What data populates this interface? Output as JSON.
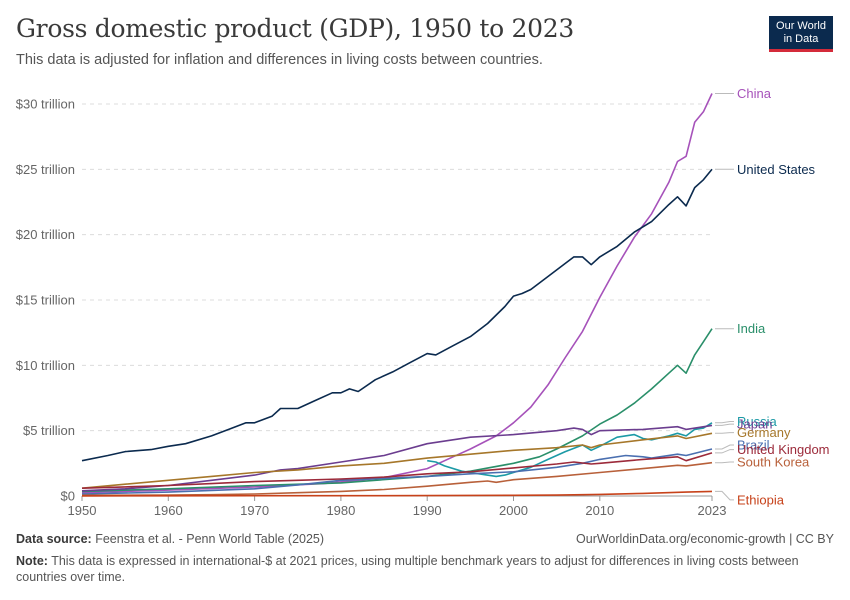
{
  "header": {
    "title": "Gross domestic product (GDP), 1950 to 2023",
    "subtitle": "This data is adjusted for inflation and differences in living costs between countries."
  },
  "logo": {
    "line1": "Our World",
    "line2": "in Data",
    "bg_color": "#0b2a4e",
    "accent_color": "#d42b3a"
  },
  "footer": {
    "source_label": "Data source:",
    "source_text": "Feenstra et al. - Penn World Table (2025)",
    "url_text": "OurWorldinData.org/economic-growth | CC BY",
    "note_label": "Note:",
    "note_text": "This data is expressed in international-$ at 2021 prices, using multiple benchmark years to adjust for differences in living costs between countries over time."
  },
  "chart_data": {
    "type": "line",
    "title": "Gross domestic product (GDP), 1950 to 2023",
    "xlim": [
      1950,
      2023
    ],
    "ylim": [
      0,
      31
    ],
    "grid": "horizontal dashed",
    "legend": "right, line-end labels",
    "x_ticks": [
      {
        "value": 1950,
        "label": "1950"
      },
      {
        "value": 1960,
        "label": "1960"
      },
      {
        "value": 1970,
        "label": "1970"
      },
      {
        "value": 1980,
        "label": "1980"
      },
      {
        "value": 1990,
        "label": "1990"
      },
      {
        "value": 2000,
        "label": "2000"
      },
      {
        "value": 2010,
        "label": "2010"
      },
      {
        "value": 2023,
        "label": "2023"
      }
    ],
    "y_ticks": [
      {
        "value": 0,
        "label": "$0"
      },
      {
        "value": 5,
        "label": "$5 trillion"
      },
      {
        "value": 10,
        "label": "$10 trillion"
      },
      {
        "value": 15,
        "label": "$15 trillion"
      },
      {
        "value": 20,
        "label": "$20 trillion"
      },
      {
        "value": 25,
        "label": "$25 trillion"
      },
      {
        "value": 30,
        "label": "$30 trillion"
      }
    ],
    "series": [
      {
        "name": "China",
        "color": "#a652ba",
        "label_value": 30.8,
        "points": [
          [
            1950,
            0.25
          ],
          [
            1960,
            0.45
          ],
          [
            1970,
            0.7
          ],
          [
            1978,
            0.95
          ],
          [
            1985,
            1.4
          ],
          [
            1990,
            2.1
          ],
          [
            1993,
            3.0
          ],
          [
            1995,
            3.6
          ],
          [
            1998,
            4.6
          ],
          [
            2000,
            5.6
          ],
          [
            2002,
            6.8
          ],
          [
            2004,
            8.5
          ],
          [
            2006,
            10.6
          ],
          [
            2008,
            12.6
          ],
          [
            2010,
            15.2
          ],
          [
            2012,
            17.6
          ],
          [
            2014,
            19.8
          ],
          [
            2016,
            21.6
          ],
          [
            2018,
            24.0
          ],
          [
            2019,
            25.6
          ],
          [
            2020,
            26.0
          ],
          [
            2021,
            28.6
          ],
          [
            2022,
            29.4
          ],
          [
            2023,
            30.8
          ]
        ]
      },
      {
        "name": "United States",
        "color": "#0b2a4e",
        "label_value": 25.0,
        "points": [
          [
            1950,
            2.7
          ],
          [
            1953,
            3.1
          ],
          [
            1955,
            3.4
          ],
          [
            1958,
            3.55
          ],
          [
            1960,
            3.8
          ],
          [
            1962,
            4.0
          ],
          [
            1965,
            4.6
          ],
          [
            1967,
            5.1
          ],
          [
            1969,
            5.6
          ],
          [
            1970,
            5.6
          ],
          [
            1972,
            6.1
          ],
          [
            1973,
            6.7
          ],
          [
            1975,
            6.7
          ],
          [
            1977,
            7.3
          ],
          [
            1979,
            7.9
          ],
          [
            1980,
            7.9
          ],
          [
            1981,
            8.2
          ],
          [
            1982,
            8.0
          ],
          [
            1984,
            8.9
          ],
          [
            1986,
            9.5
          ],
          [
            1988,
            10.2
          ],
          [
            1990,
            10.9
          ],
          [
            1991,
            10.8
          ],
          [
            1993,
            11.5
          ],
          [
            1995,
            12.2
          ],
          [
            1997,
            13.2
          ],
          [
            1999,
            14.5
          ],
          [
            2000,
            15.3
          ],
          [
            2001,
            15.5
          ],
          [
            2002,
            15.8
          ],
          [
            2004,
            16.8
          ],
          [
            2006,
            17.8
          ],
          [
            2007,
            18.3
          ],
          [
            2008,
            18.3
          ],
          [
            2009,
            17.7
          ],
          [
            2010,
            18.3
          ],
          [
            2012,
            19.1
          ],
          [
            2014,
            20.2
          ],
          [
            2016,
            21.0
          ],
          [
            2018,
            22.3
          ],
          [
            2019,
            22.9
          ],
          [
            2020,
            22.2
          ],
          [
            2021,
            23.6
          ],
          [
            2022,
            24.2
          ],
          [
            2023,
            25.0
          ]
        ]
      },
      {
        "name": "India",
        "color": "#2a8f6a",
        "label_value": 12.8,
        "points": [
          [
            1950,
            0.35
          ],
          [
            1960,
            0.55
          ],
          [
            1970,
            0.8
          ],
          [
            1980,
            1.0
          ],
          [
            1990,
            1.5
          ],
          [
            1995,
            1.9
          ],
          [
            2000,
            2.5
          ],
          [
            2003,
            3.0
          ],
          [
            2005,
            3.6
          ],
          [
            2008,
            4.6
          ],
          [
            2010,
            5.5
          ],
          [
            2012,
            6.2
          ],
          [
            2014,
            7.1
          ],
          [
            2016,
            8.2
          ],
          [
            2018,
            9.4
          ],
          [
            2019,
            10.0
          ],
          [
            2020,
            9.4
          ],
          [
            2021,
            10.8
          ],
          [
            2022,
            11.8
          ],
          [
            2023,
            12.8
          ]
        ]
      },
      {
        "name": "Russia",
        "color": "#1c9aa6",
        "label_value": 5.7,
        "points": [
          [
            1990,
            2.7
          ],
          [
            1991,
            2.6
          ],
          [
            1992,
            2.3
          ],
          [
            1994,
            1.9
          ],
          [
            1996,
            1.7
          ],
          [
            1998,
            1.5
          ],
          [
            1999,
            1.6
          ],
          [
            2000,
            1.8
          ],
          [
            2002,
            2.2
          ],
          [
            2004,
            2.8
          ],
          [
            2006,
            3.4
          ],
          [
            2008,
            3.9
          ],
          [
            2009,
            3.5
          ],
          [
            2010,
            3.8
          ],
          [
            2012,
            4.5
          ],
          [
            2014,
            4.7
          ],
          [
            2015,
            4.4
          ],
          [
            2016,
            4.3
          ],
          [
            2018,
            4.6
          ],
          [
            2019,
            4.8
          ],
          [
            2020,
            4.6
          ],
          [
            2021,
            5.1
          ],
          [
            2022,
            5.2
          ],
          [
            2023,
            5.6
          ]
        ]
      },
      {
        "name": "Japan",
        "color": "#6b3d8f",
        "label_value": 5.5,
        "points": [
          [
            1950,
            0.4
          ],
          [
            1955,
            0.55
          ],
          [
            1960,
            0.8
          ],
          [
            1965,
            1.2
          ],
          [
            1970,
            1.6
          ],
          [
            1973,
            2.0
          ],
          [
            1975,
            2.1
          ],
          [
            1980,
            2.6
          ],
          [
            1985,
            3.1
          ],
          [
            1990,
            4.0
          ],
          [
            1995,
            4.5
          ],
          [
            2000,
            4.7
          ],
          [
            2005,
            5.0
          ],
          [
            2007,
            5.2
          ],
          [
            2008,
            5.1
          ],
          [
            2009,
            4.7
          ],
          [
            2010,
            5.0
          ],
          [
            2015,
            5.1
          ],
          [
            2019,
            5.3
          ],
          [
            2020,
            5.1
          ],
          [
            2023,
            5.4
          ]
        ]
      },
      {
        "name": "Germany",
        "color": "#a6772a",
        "label_value": 4.85,
        "points": [
          [
            1950,
            0.6
          ],
          [
            1955,
            0.9
          ],
          [
            1960,
            1.2
          ],
          [
            1965,
            1.5
          ],
          [
            1970,
            1.8
          ],
          [
            1975,
            2.0
          ],
          [
            1980,
            2.3
          ],
          [
            1985,
            2.5
          ],
          [
            1990,
            2.9
          ],
          [
            1995,
            3.2
          ],
          [
            2000,
            3.5
          ],
          [
            2005,
            3.7
          ],
          [
            2008,
            3.9
          ],
          [
            2009,
            3.7
          ],
          [
            2010,
            3.9
          ],
          [
            2015,
            4.3
          ],
          [
            2019,
            4.6
          ],
          [
            2020,
            4.4
          ],
          [
            2023,
            4.8
          ]
        ]
      },
      {
        "name": "Brazil",
        "color": "#4a6fb0",
        "label_value": 3.9,
        "points": [
          [
            1950,
            0.15
          ],
          [
            1960,
            0.3
          ],
          [
            1970,
            0.55
          ],
          [
            1975,
            0.85
          ],
          [
            1980,
            1.2
          ],
          [
            1985,
            1.35
          ],
          [
            1990,
            1.5
          ],
          [
            1995,
            1.7
          ],
          [
            2000,
            1.85
          ],
          [
            2005,
            2.2
          ],
          [
            2008,
            2.5
          ],
          [
            2010,
            2.8
          ],
          [
            2013,
            3.1
          ],
          [
            2015,
            3.0
          ],
          [
            2016,
            2.9
          ],
          [
            2019,
            3.2
          ],
          [
            2020,
            3.1
          ],
          [
            2023,
            3.6
          ]
        ]
      },
      {
        "name": "United Kingdom",
        "color": "#9c2a3a",
        "label_value": 3.55,
        "points": [
          [
            1950,
            0.6
          ],
          [
            1955,
            0.7
          ],
          [
            1960,
            0.8
          ],
          [
            1965,
            0.95
          ],
          [
            1970,
            1.1
          ],
          [
            1975,
            1.2
          ],
          [
            1980,
            1.3
          ],
          [
            1985,
            1.45
          ],
          [
            1990,
            1.7
          ],
          [
            1995,
            1.85
          ],
          [
            2000,
            2.15
          ],
          [
            2005,
            2.45
          ],
          [
            2007,
            2.6
          ],
          [
            2009,
            2.45
          ],
          [
            2010,
            2.5
          ],
          [
            2015,
            2.8
          ],
          [
            2019,
            3.0
          ],
          [
            2020,
            2.7
          ],
          [
            2023,
            3.3
          ]
        ]
      },
      {
        "name": "South Korea",
        "color": "#b8603a",
        "label_value": 2.6,
        "points": [
          [
            1950,
            0.05
          ],
          [
            1960,
            0.08
          ],
          [
            1965,
            0.1
          ],
          [
            1970,
            0.15
          ],
          [
            1975,
            0.25
          ],
          [
            1980,
            0.35
          ],
          [
            1985,
            0.5
          ],
          [
            1990,
            0.75
          ],
          [
            1995,
            1.05
          ],
          [
            1997,
            1.15
          ],
          [
            1998,
            1.05
          ],
          [
            2000,
            1.25
          ],
          [
            2005,
            1.5
          ],
          [
            2010,
            1.8
          ],
          [
            2015,
            2.1
          ],
          [
            2019,
            2.35
          ],
          [
            2020,
            2.3
          ],
          [
            2023,
            2.55
          ]
        ]
      },
      {
        "name": "Ethiopia",
        "color": "#c7421a",
        "label_value": -0.3,
        "points": [
          [
            1950,
            0.01
          ],
          [
            1960,
            0.015
          ],
          [
            1970,
            0.02
          ],
          [
            1980,
            0.025
          ],
          [
            1990,
            0.03
          ],
          [
            2000,
            0.05
          ],
          [
            2005,
            0.07
          ],
          [
            2010,
            0.12
          ],
          [
            2015,
            0.2
          ],
          [
            2020,
            0.3
          ],
          [
            2023,
            0.35
          ]
        ]
      }
    ]
  }
}
